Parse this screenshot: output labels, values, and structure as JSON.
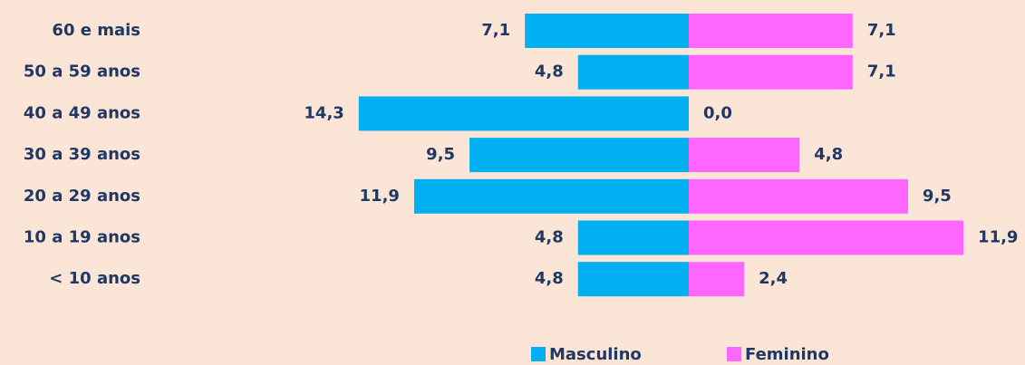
{
  "chart_data": {
    "type": "pyramid",
    "categories": [
      "60 e mais",
      "50 a 59 anos",
      "40 a 49 anos",
      "30 a 39 anos",
      "20 a 29 anos",
      "10 a 19 anos",
      "< 10 anos"
    ],
    "series": [
      {
        "name": "Masculino",
        "color": "#00b0f0",
        "values": [
          7.1,
          4.8,
          14.3,
          9.5,
          11.9,
          4.8,
          4.8
        ],
        "value_labels": [
          "7,1",
          "4,8",
          "14,3",
          "9,5",
          "11,9",
          "4,8",
          "4,8"
        ]
      },
      {
        "name": "Feminino",
        "color": "#ff66ff",
        "values": [
          7.1,
          7.1,
          0.0,
          4.8,
          9.5,
          11.9,
          2.4
        ],
        "value_labels": [
          "7,1",
          "7,1",
          "0,0",
          "4,8",
          "9,5",
          "11,9",
          "2,4"
        ]
      }
    ],
    "xlim": [
      0,
      15
    ]
  }
}
